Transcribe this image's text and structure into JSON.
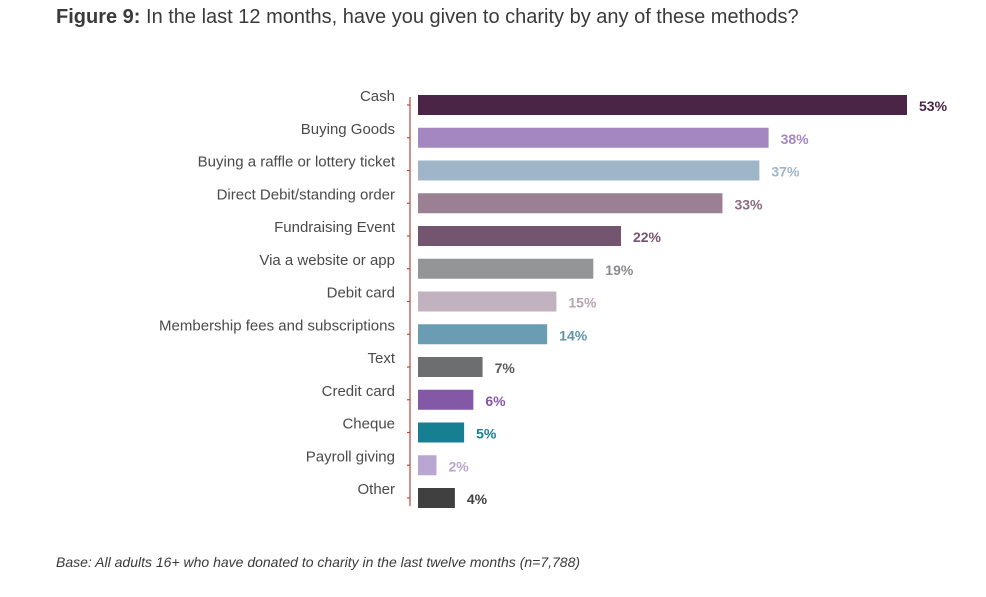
{
  "figure": {
    "label": "Figure 9:",
    "title": "In the last 12 months, have you given to charity by any of these methods?"
  },
  "chart_data": {
    "type": "bar",
    "orientation": "horizontal",
    "title": "In the last 12 months, have you given to charity by any of these methods?",
    "xlabel": "",
    "ylabel": "",
    "xlim": [
      0,
      53
    ],
    "grid": false,
    "categories": [
      "Cash",
      "Buying Goods",
      "Buying a raffle or lottery ticket",
      "Direct Debit/standing order",
      "Fundraising Event",
      "Via a website or app",
      "Debit card",
      "Membership fees and subscriptions",
      "Text",
      "Credit card",
      "Cheque",
      "Payroll giving",
      "Other"
    ],
    "values": [
      53,
      38,
      37,
      33,
      22,
      19,
      15,
      14,
      7,
      6,
      5,
      2,
      4
    ],
    "value_labels": [
      "53%",
      "38%",
      "37%",
      "33%",
      "22%",
      "19%",
      "15%",
      "14%",
      "7%",
      "6%",
      "5%",
      "2%",
      "4%"
    ],
    "bar_colors": [
      "#4a2545",
      "#a487c0",
      "#9fb6c8",
      "#9b8093",
      "#74556f",
      "#949597",
      "#c2b1bf",
      "#6a9db3",
      "#6d6e70",
      "#8358a6",
      "#167f92",
      "#b9a6d3",
      "#404041"
    ],
    "label_colors": [
      "#4a2545",
      "#a487c0",
      "#9fb6c8",
      "#8a6a80",
      "#74556f",
      "#8a8b8d",
      "#b5a4b2",
      "#5f93aa",
      "#58595b",
      "#8358a6",
      "#167f92",
      "#b9a6d3",
      "#404041"
    ],
    "axis_color": "#b2493c"
  },
  "footnote": "Base: All adults 16+ who have donated to charity in the last twelve months (n=7,788)"
}
